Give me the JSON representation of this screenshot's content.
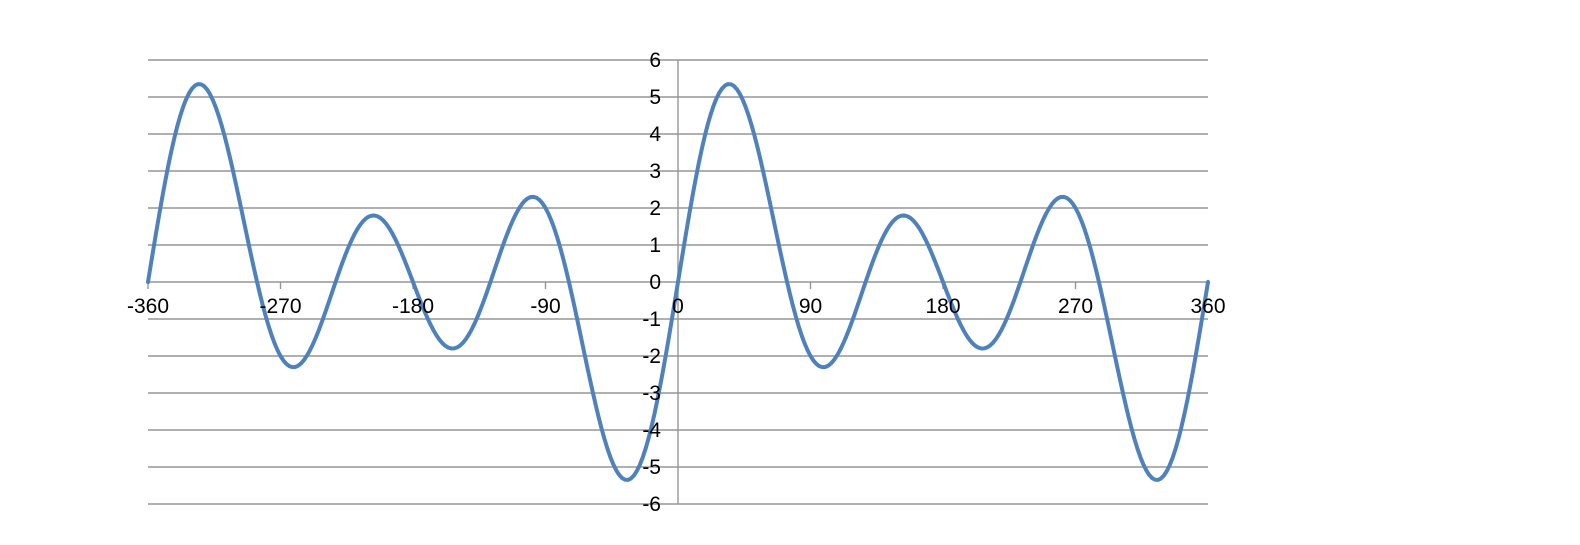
{
  "page": {
    "background_color": "#FFFFFF"
  },
  "chart_data": {
    "type": "line",
    "title": "",
    "legend": "none",
    "grid": "horizontal major gridlines only",
    "axes": {
      "x": {
        "label": "",
        "min": -360,
        "max": 360,
        "tick_step": 90,
        "tick_labels": [
          "-360",
          "-270",
          "-180",
          "-90",
          "0",
          "90",
          "180",
          "270",
          "360"
        ],
        "ticks_side": "below axis at y=0"
      },
      "y": {
        "label": "",
        "min": -6,
        "max": 6,
        "tick_step": 1,
        "tick_labels": [
          "6",
          "5",
          "4",
          "3",
          "2",
          "1",
          "0",
          "-1",
          "-2",
          "-3",
          "-4",
          "-5",
          "-6"
        ],
        "labels_side": "left of vertical axis at x=0"
      }
    },
    "series": [
      {
        "harmonic_sine_coefficients": [
          1,
          2,
          3
        ],
        "x": [
          -360,
          -345,
          -330,
          -315,
          -300,
          -285,
          -270,
          -255,
          -240,
          -225,
          -210,
          -195,
          -180,
          -165,
          -150,
          -135,
          -120,
          -105,
          -90,
          -75,
          -60,
          -45,
          -30,
          -15,
          0,
          15,
          30,
          45,
          60,
          75,
          90,
          105,
          120,
          135,
          150,
          165,
          180,
          195,
          210,
          225,
          240,
          255,
          270,
          285,
          300,
          315,
          330,
          345,
          360
        ],
        "y": [
          0,
          3.38,
          5.232,
          4.828,
          2.598,
          -0.155,
          -2,
          -2.155,
          -0.866,
          0.828,
          1.768,
          1.38,
          0,
          -1.38,
          -1.768,
          -0.828,
          0.866,
          2.155,
          2,
          0.155,
          -2.598,
          -4.828,
          -5.232,
          -3.38,
          0,
          3.38,
          5.232,
          4.828,
          2.598,
          -0.155,
          -2,
          -2.155,
          -0.866,
          0.828,
          1.768,
          1.38,
          0,
          -1.38,
          -1.768,
          -0.828,
          0.866,
          2.155,
          2,
          0.155,
          -2.598,
          -4.828,
          -5.232,
          -3.38,
          0
        ],
        "color": "#4F81BD",
        "stroke_width": 4,
        "smooth": true
      }
    ],
    "colors": {
      "gridline": "#969696",
      "axis_line": "#969696",
      "tick_mark": "#969696",
      "tick_label": "#000000"
    }
  }
}
